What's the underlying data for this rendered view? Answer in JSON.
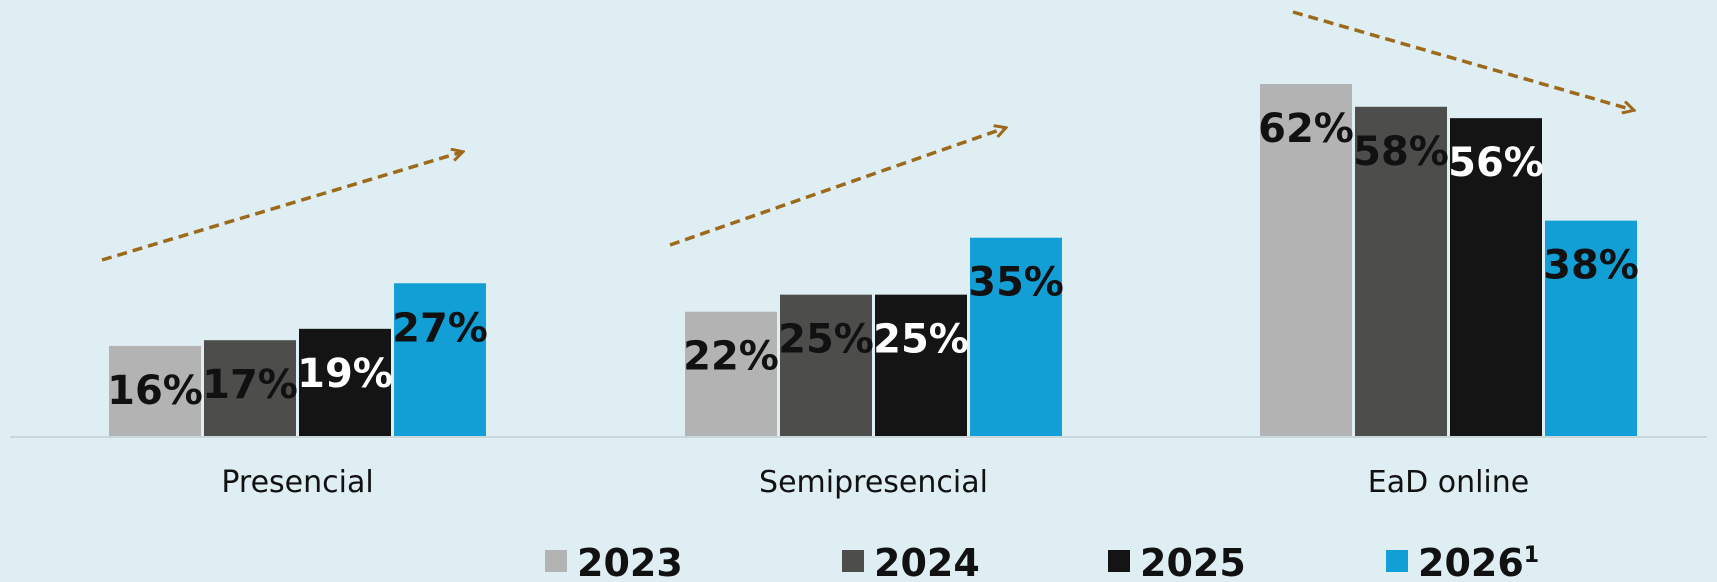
{
  "chart_data": {
    "type": "bar",
    "categories": [
      "Presencial",
      "Semipresencial",
      "EaD online"
    ],
    "series": [
      {
        "name": "2023",
        "values": [
          16,
          22,
          62
        ],
        "color": "#b3b3b3",
        "label_color": "#111111"
      },
      {
        "name": "2024",
        "values": [
          17,
          25,
          58
        ],
        "color": "#4d4d4b",
        "label_color": "#111111"
      },
      {
        "name": "2025",
        "values": [
          19,
          25,
          56
        ],
        "color": "#141414",
        "label_color": "#ffffff"
      },
      {
        "name": "2026",
        "legend_suffix": "1",
        "values": [
          27,
          35,
          38
        ],
        "color": "#129fd6",
        "label_color": "#111111"
      }
    ],
    "value_suffix": "%",
    "ylim": [
      0,
      62
    ],
    "trend_arrows": [
      {
        "category": "Presencial",
        "direction": "up"
      },
      {
        "category": "Semipresencial",
        "direction": "up"
      },
      {
        "category": "EaD online",
        "direction": "down"
      }
    ],
    "colors": {
      "background": "#dfeef2",
      "baseline": "#c9d7dc",
      "arrow": "#9c6a1a"
    },
    "grid": false,
    "legend_position": "bottom"
  }
}
